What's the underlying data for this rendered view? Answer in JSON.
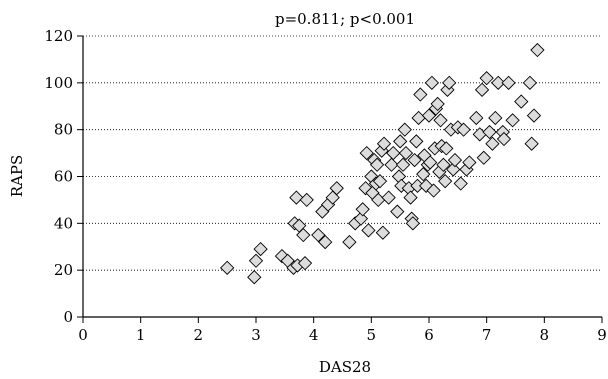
{
  "chart_data": {
    "type": "scatter",
    "title": "p=0.811; p<0.001",
    "xlabel": "DAS28",
    "ylabel": "RAPS",
    "xlim": [
      0,
      9
    ],
    "ylim": [
      0,
      120
    ],
    "xticks": [
      "0",
      "1",
      "2",
      "3",
      "4",
      "5",
      "6",
      "7",
      "8",
      "9"
    ],
    "yticks": [
      "0",
      "20",
      "40",
      "60",
      "80",
      "100",
      "120"
    ],
    "grid": "horizontal dotted",
    "marker": "diamond",
    "colors": {
      "marker_fill": "#dcdcdc",
      "marker_stroke": "#000000"
    },
    "points": [
      [
        2.5,
        21
      ],
      [
        2.97,
        17
      ],
      [
        3.0,
        24
      ],
      [
        3.08,
        29
      ],
      [
        3.45,
        26
      ],
      [
        3.55,
        24
      ],
      [
        3.65,
        21
      ],
      [
        3.67,
        40
      ],
      [
        3.7,
        51
      ],
      [
        3.72,
        22
      ],
      [
        3.75,
        39
      ],
      [
        3.82,
        35
      ],
      [
        3.85,
        23
      ],
      [
        3.88,
        50
      ],
      [
        4.08,
        35
      ],
      [
        4.15,
        45
      ],
      [
        4.2,
        32
      ],
      [
        4.25,
        48
      ],
      [
        4.33,
        51
      ],
      [
        4.4,
        55
      ],
      [
        4.62,
        32
      ],
      [
        4.72,
        40
      ],
      [
        4.82,
        42
      ],
      [
        4.85,
        46
      ],
      [
        4.9,
        55
      ],
      [
        4.92,
        70
      ],
      [
        4.95,
        37
      ],
      [
        5.0,
        60
      ],
      [
        5.02,
        53
      ],
      [
        5.05,
        67
      ],
      [
        5.08,
        57
      ],
      [
        5.1,
        65
      ],
      [
        5.12,
        50
      ],
      [
        5.15,
        58
      ],
      [
        5.18,
        71
      ],
      [
        5.2,
        36
      ],
      [
        5.22,
        74
      ],
      [
        5.3,
        51
      ],
      [
        5.35,
        65
      ],
      [
        5.38,
        70
      ],
      [
        5.45,
        45
      ],
      [
        5.48,
        60
      ],
      [
        5.5,
        75
      ],
      [
        5.52,
        56
      ],
      [
        5.55,
        65
      ],
      [
        5.58,
        80
      ],
      [
        5.6,
        70
      ],
      [
        5.65,
        55
      ],
      [
        5.68,
        51
      ],
      [
        5.7,
        42
      ],
      [
        5.72,
        40
      ],
      [
        5.75,
        67
      ],
      [
        5.78,
        75
      ],
      [
        5.8,
        56
      ],
      [
        5.82,
        85
      ],
      [
        5.85,
        95
      ],
      [
        5.9,
        61
      ],
      [
        5.92,
        69
      ],
      [
        5.95,
        56
      ],
      [
        5.98,
        65
      ],
      [
        6.0,
        86
      ],
      [
        6.02,
        66
      ],
      [
        6.05,
        100
      ],
      [
        6.08,
        54
      ],
      [
        6.1,
        72
      ],
      [
        6.12,
        89
      ],
      [
        6.15,
        91
      ],
      [
        6.18,
        62
      ],
      [
        6.2,
        84
      ],
      [
        6.22,
        73
      ],
      [
        6.25,
        65
      ],
      [
        6.28,
        58
      ],
      [
        6.3,
        72
      ],
      [
        6.32,
        97
      ],
      [
        6.35,
        100
      ],
      [
        6.38,
        80
      ],
      [
        6.42,
        63
      ],
      [
        6.45,
        67
      ],
      [
        6.5,
        81
      ],
      [
        6.55,
        57
      ],
      [
        6.6,
        80
      ],
      [
        6.65,
        63
      ],
      [
        6.7,
        66
      ],
      [
        6.82,
        85
      ],
      [
        6.88,
        78
      ],
      [
        6.92,
        97
      ],
      [
        6.95,
        68
      ],
      [
        7.0,
        102
      ],
      [
        7.05,
        79
      ],
      [
        7.1,
        74
      ],
      [
        7.15,
        85
      ],
      [
        7.2,
        100
      ],
      [
        7.28,
        79
      ],
      [
        7.3,
        76
      ],
      [
        7.38,
        100
      ],
      [
        7.45,
        84
      ],
      [
        7.6,
        92
      ],
      [
        7.75,
        100
      ],
      [
        7.78,
        74
      ],
      [
        7.82,
        86
      ],
      [
        7.88,
        114
      ]
    ]
  }
}
